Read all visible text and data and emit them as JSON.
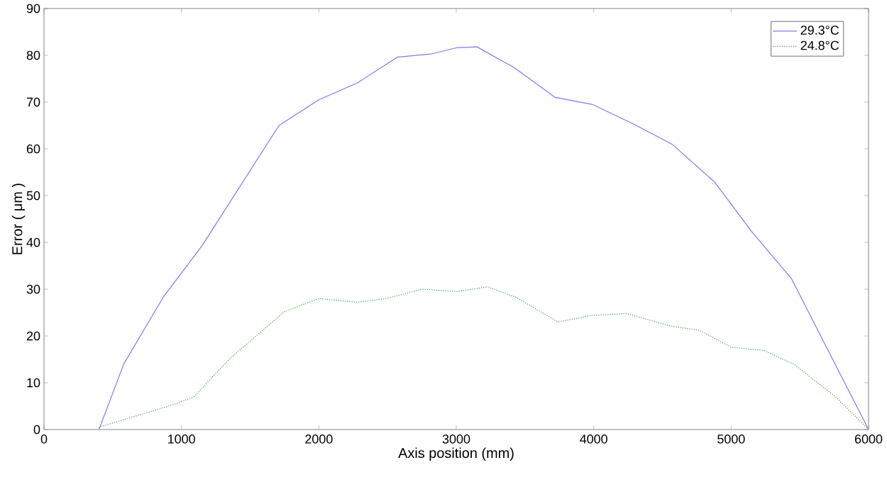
{
  "chart_data": {
    "type": "line",
    "xlabel": "Axis position (mm)",
    "ylabel": "Error ( μm )",
    "xlim": [
      0,
      6000
    ],
    "xticks": [
      0,
      1000,
      2000,
      3000,
      4000,
      5000,
      6000
    ],
    "ylim": [
      0,
      90
    ],
    "yticks": [
      0,
      10,
      20,
      30,
      40,
      50,
      60,
      70,
      80,
      90
    ],
    "grid": false,
    "legend": "top right",
    "marker": "none",
    "series": [
      {
        "name": "29.3°C",
        "color": "#7b7bea",
        "line_style": "solid",
        "x": [
          400,
          580,
          870,
          1150,
          1710,
          2000,
          2280,
          2570,
          2820,
          3000,
          3150,
          3420,
          3720,
          3990,
          4290,
          4570,
          4880,
          5150,
          5440,
          6000
        ],
        "values": [
          0,
          14,
          28.4,
          39.3,
          65,
          70.5,
          74.1,
          79.6,
          80.3,
          81.6,
          81.8,
          77.4,
          71,
          69.5,
          65.3,
          61,
          52.9,
          42.3,
          32.2,
          0
        ]
      },
      {
        "name": "24.8°C",
        "color": "#3a9a3a",
        "line_style": "dotted",
        "x": [
          400,
          960,
          1090,
          1350,
          1750,
          2000,
          2280,
          2490,
          2750,
          3000,
          3230,
          3440,
          3740,
          3990,
          4240,
          4550,
          4770,
          5000,
          5240,
          5460,
          5760,
          6000
        ],
        "values": [
          0.5,
          5.5,
          7,
          15.1,
          25.2,
          28,
          27.2,
          28,
          30,
          29.5,
          30.5,
          28.2,
          23,
          24.4,
          24.8,
          22.2,
          21.2,
          17.6,
          16.9,
          13.9,
          7,
          0
        ]
      }
    ]
  }
}
